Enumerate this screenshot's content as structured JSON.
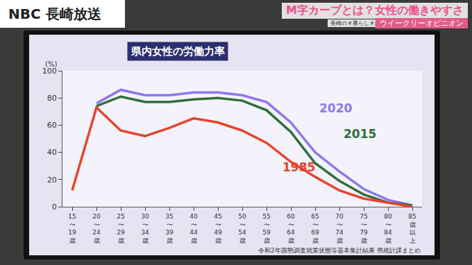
{
  "screen": {
    "channel": "NBC 長崎放送",
    "headline": "M字カーブとは？女性の働きやすさ",
    "tag": "長崎の＃暮らし＃経済",
    "program": "ウイークリーオピニオン"
  },
  "chart_data": {
    "type": "line",
    "title": "県内女性の労働力率",
    "y_label": "(%)",
    "annotations": [
      "令和2年国勢調査就業状態等基本集計結果 県統計課まとめ"
    ],
    "categories": [
      "15〜19歳",
      "20〜24歳",
      "25〜29歳",
      "30〜34歳",
      "35〜39歳",
      "40〜44歳",
      "45〜49歳",
      "50〜54歳",
      "55〜59歳",
      "60〜64歳",
      "65〜69歳",
      "70〜74歳",
      "75〜79歳",
      "80〜84歳",
      "85歳以上"
    ],
    "series": [
      {
        "name": "2020",
        "color": "#8a78f0",
        "values": [
          null,
          76,
          86,
          82,
          82,
          84,
          84,
          82,
          77,
          62,
          40,
          26,
          13,
          5,
          1
        ]
      },
      {
        "name": "2015",
        "color": "#2f6e3c",
        "values": [
          null,
          74,
          81,
          77,
          77,
          79,
          80,
          78,
          71,
          55,
          32,
          19,
          9,
          3,
          1
        ]
      },
      {
        "name": "1985",
        "color": "#e8432b",
        "values": [
          12,
          73,
          56,
          52,
          58,
          65,
          62,
          56,
          47,
          33,
          22,
          12,
          6,
          3,
          0
        ]
      }
    ],
    "ylim": [
      0,
      100
    ],
    "yticks": [
      0,
      20,
      40,
      60,
      80,
      100
    ],
    "grid": false
  }
}
